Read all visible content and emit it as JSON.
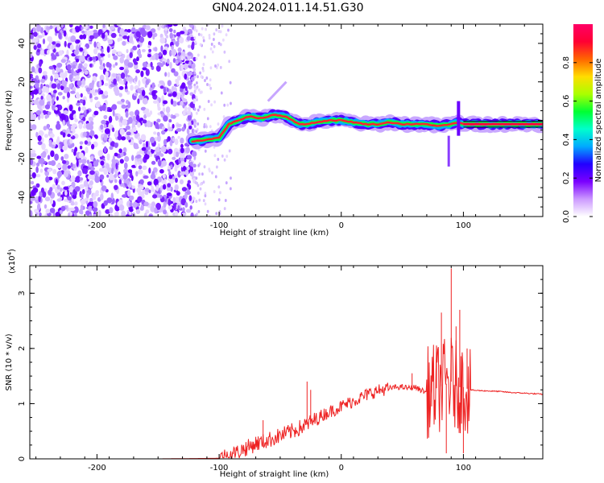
{
  "title": "GN04.2024.011.14.51.G30",
  "chart_data": [
    {
      "type": "heatmap",
      "xlabel": "Height of straight line (km)",
      "ylabel": "Frequency (Hz)",
      "xlim": [
        -255,
        165
      ],
      "ylim": [
        -50,
        50
      ],
      "xticks": [
        -200,
        -100,
        0,
        100
      ],
      "yticks": [
        -40,
        -20,
        0,
        20,
        40
      ],
      "colorbar": {
        "label": "Normalized spectral amplitude",
        "range": [
          0,
          1
        ],
        "ticks": [
          "0.0",
          "0.2",
          "0.4",
          "0.6",
          "0.8"
        ],
        "colormap": [
          "#ffffff",
          "#cc99ff",
          "#7a00ff",
          "#2200ff",
          "#00aaff",
          "#00ffcc",
          "#00ff33",
          "#aaff00",
          "#ffdd00",
          "#ff6600",
          "#ff0033",
          "#ff0066"
        ]
      },
      "track": {
        "x": [
          -122,
          -110,
          -100,
          -92,
          -85,
          -75,
          -65,
          -55,
          -45,
          -40,
          -35,
          -30,
          -20,
          -10,
          0,
          10,
          20,
          30,
          40,
          50,
          60,
          70,
          80,
          90,
          95,
          100,
          120,
          140,
          165
        ],
        "y": [
          -11,
          -10,
          -9,
          -2,
          0,
          2,
          1,
          3,
          2,
          0,
          -2,
          -2,
          -1,
          0,
          0,
          -1,
          -2,
          -2,
          -1,
          -2,
          -2,
          -2,
          -3,
          -2,
          -1,
          -2,
          -2,
          -2,
          -2
        ]
      },
      "noise_region": [
        -255,
        -120
      ],
      "noise_scattered_region": [
        -120,
        -90
      ]
    },
    {
      "type": "line",
      "xlabel": "Height of straight line (km)",
      "ylabel": "SNR (10 * v/v)",
      "y_multiplier": "(x10",
      "y_multiplier_exp": "4",
      "y_multiplier_close": ")",
      "xlim": [
        -255,
        165
      ],
      "ylim": [
        0,
        3.5
      ],
      "xticks": [
        -200,
        -100,
        0,
        100
      ],
      "yticks": [
        0,
        1,
        2,
        3
      ],
      "series": [
        {
          "color": "#ee2222",
          "x": [
            -255,
            -150,
            -100,
            -95,
            -90,
            -85,
            -80,
            -75,
            -70,
            -65,
            -60,
            -55,
            -50,
            -45,
            -40,
            -35,
            -30,
            -25,
            -20,
            -15,
            -10,
            -5,
            0,
            5,
            10,
            15,
            20,
            25,
            30,
            35,
            40,
            45,
            50,
            55,
            60,
            65,
            70,
            75,
            80,
            85,
            90,
            95,
            100,
            105,
            110,
            120,
            130,
            140,
            150,
            165
          ],
          "y": [
            0.0,
            0.0,
            0.01,
            0.05,
            0.08,
            0.12,
            0.18,
            0.22,
            0.28,
            0.3,
            0.34,
            0.38,
            0.42,
            0.46,
            0.5,
            0.55,
            0.6,
            0.66,
            0.72,
            0.8,
            0.85,
            0.9,
            0.95,
            1.0,
            1.05,
            1.1,
            1.15,
            1.2,
            1.23,
            1.26,
            1.28,
            1.3,
            1.3,
            1.28,
            1.3,
            1.25,
            1.2,
            1.25,
            1.3,
            1.35,
            1.4,
            1.3,
            1.3,
            1.25,
            1.24,
            1.23,
            1.22,
            1.2,
            1.19,
            1.17
          ],
          "spikes": [
            {
              "x": -64,
              "y": 0.7
            },
            {
              "x": -28,
              "y": 1.4
            },
            {
              "x": -25,
              "y": 1.25
            },
            {
              "x": 58,
              "y": 1.55
            },
            {
              "x": 74,
              "y": 0.95
            },
            {
              "x": 78,
              "y": 2.05
            },
            {
              "x": 82,
              "y": 2.65
            },
            {
              "x": 86,
              "y": 0.1
            },
            {
              "x": 90,
              "y": 3.45
            },
            {
              "x": 94,
              "y": 2.4
            },
            {
              "x": 97,
              "y": 2.7
            },
            {
              "x": 100,
              "y": 0.1
            },
            {
              "x": 103,
              "y": 2.0
            }
          ]
        }
      ]
    }
  ]
}
